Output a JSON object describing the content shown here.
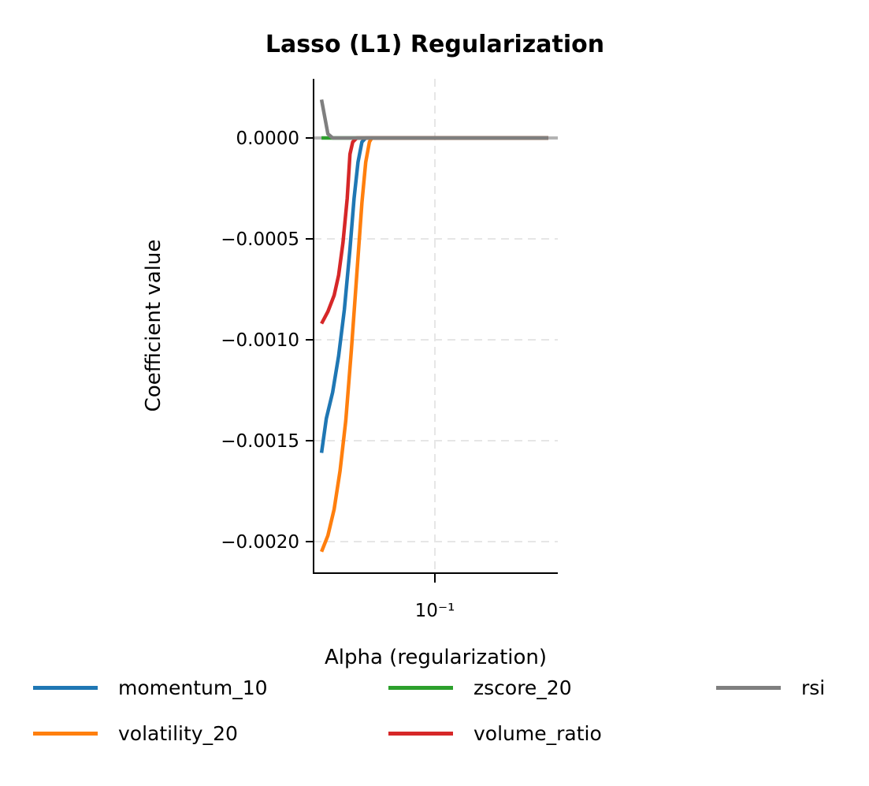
{
  "chart_data": {
    "type": "line",
    "title": "Lasso (L1) Regularization",
    "xlabel": "Alpha (regularization)",
    "ylabel": "Coefficient value",
    "xscale": "log",
    "xlim": [
      0.046,
      0.23
    ],
    "ylim": [
      -0.00215,
      0.00029
    ],
    "x_ticks": [
      {
        "value": 0.1,
        "label": "10⁻¹"
      }
    ],
    "y_ticks": [
      {
        "value": 0.0,
        "label": "0.0000"
      },
      {
        "value": -0.0005,
        "label": "−0.0005"
      },
      {
        "value": -0.001,
        "label": "−0.0010"
      },
      {
        "value": -0.0015,
        "label": "−0.0015"
      },
      {
        "value": -0.002,
        "label": "−0.0020"
      }
    ],
    "grid": true,
    "zero_line": true,
    "legend_position": "bottom",
    "series": [
      {
        "name": "momentum_10",
        "color": "#1f77b4",
        "x": [
          0.05,
          0.0515,
          0.0535,
          0.0555,
          0.0575,
          0.0595,
          0.061,
          0.0625,
          0.064,
          0.0655,
          0.2
        ],
        "y": [
          -0.00156,
          -0.00139,
          -0.00126,
          -0.00108,
          -0.00085,
          -0.00055,
          -0.0003,
          -0.00012,
          -2e-05,
          0.0,
          0.0
        ]
      },
      {
        "name": "volatility_20",
        "color": "#ff7f0e",
        "x": [
          0.05,
          0.052,
          0.054,
          0.056,
          0.058,
          0.06,
          0.062,
          0.064,
          0.0655,
          0.067,
          0.068,
          0.2
        ],
        "y": [
          -0.00205,
          -0.00197,
          -0.00184,
          -0.00165,
          -0.0014,
          -0.00105,
          -0.00068,
          -0.00032,
          -0.00012,
          -2e-05,
          0.0,
          0.0
        ]
      },
      {
        "name": "zscore_20",
        "color": "#2ca02c",
        "x": [
          0.05,
          0.2
        ],
        "y": [
          0.0,
          0.0
        ]
      },
      {
        "name": "volume_ratio",
        "color": "#d62728",
        "x": [
          0.05,
          0.052,
          0.054,
          0.0555,
          0.057,
          0.0585,
          0.0595,
          0.0605,
          0.062,
          0.2
        ],
        "y": [
          -0.00092,
          -0.00086,
          -0.00078,
          -0.00068,
          -0.00052,
          -0.0003,
          -8e-05,
          -2e-05,
          0.0,
          0.0
        ]
      },
      {
        "name": "rsi",
        "color": "#7f7f7f",
        "x": [
          0.05,
          0.052,
          0.0535,
          0.2
        ],
        "y": [
          0.00019,
          2e-05,
          0.0,
          0.0
        ]
      }
    ]
  },
  "legend": {
    "items": [
      {
        "label": "momentum_10",
        "color": "#1f77b4"
      },
      {
        "label": "volatility_20",
        "color": "#ff7f0e"
      },
      {
        "label": "zscore_20",
        "color": "#2ca02c"
      },
      {
        "label": "volume_ratio",
        "color": "#d62728"
      },
      {
        "label": "rsi",
        "color": "#7f7f7f"
      }
    ]
  }
}
